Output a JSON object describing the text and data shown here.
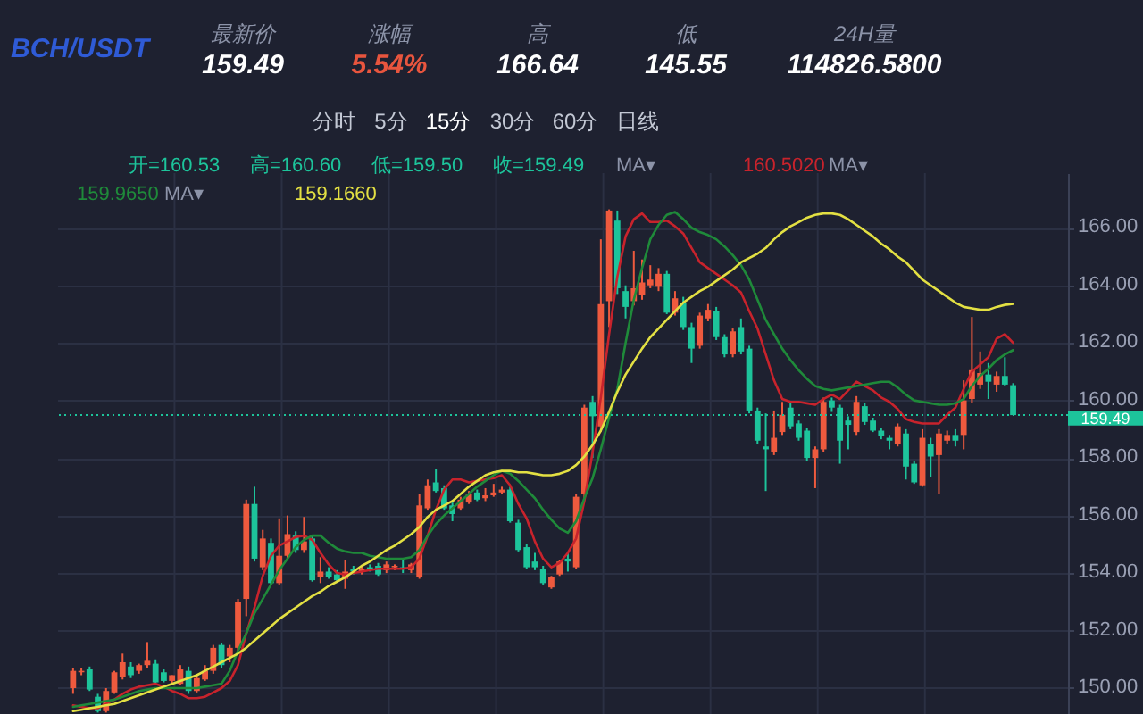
{
  "chart_data": {
    "type": "candlestick",
    "title": "BCH/USDT",
    "categories": [
      null,
      null,
      null,
      null,
      null,
      null,
      null,
      null,
      null,
      null,
      null,
      null,
      null,
      null,
      null,
      null,
      null,
      null,
      null,
      null,
      null,
      null,
      null,
      null,
      null,
      null,
      null,
      null,
      null,
      null,
      null,
      null,
      null,
      null,
      null,
      null,
      null,
      null,
      null,
      null,
      null,
      null,
      null,
      null,
      null,
      null,
      null,
      null,
      null,
      null,
      null,
      null,
      null,
      null,
      null,
      null,
      null,
      null,
      null,
      null,
      null,
      null,
      null,
      null,
      null,
      null,
      null,
      null,
      null,
      null,
      null,
      null,
      null,
      null,
      null,
      null,
      null,
      null,
      null,
      null,
      null,
      null,
      null,
      null,
      null,
      null,
      null,
      null,
      null,
      null,
      null,
      null,
      null,
      null,
      null,
      null,
      null,
      null,
      null,
      null,
      null,
      null,
      null,
      null,
      null,
      null,
      null,
      null,
      null,
      null,
      null,
      null,
      null,
      null,
      null
    ],
    "ohlc": [
      [
        150.0,
        150.7,
        149.8,
        150.6
      ],
      [
        150.55,
        150.7,
        150.45,
        150.6
      ],
      [
        150.65,
        150.75,
        149.9,
        149.95
      ],
      [
        149.7,
        149.8,
        149.15,
        149.2
      ],
      [
        149.2,
        150.0,
        149.15,
        149.9
      ],
      [
        149.85,
        150.6,
        149.8,
        150.55
      ],
      [
        150.4,
        151.2,
        150.3,
        150.9
      ],
      [
        150.75,
        150.9,
        150.35,
        150.45
      ],
      [
        150.6,
        150.85,
        150.5,
        150.8
      ],
      [
        150.8,
        151.6,
        150.7,
        150.95
      ],
      [
        150.85,
        151.0,
        150.1,
        150.2
      ],
      [
        150.55,
        150.65,
        150.2,
        150.25
      ],
      [
        150.25,
        150.45,
        150.1,
        150.45
      ],
      [
        150.15,
        150.8,
        150.1,
        150.65
      ],
      [
        150.6,
        150.75,
        149.8,
        149.9
      ],
      [
        149.9,
        150.45,
        149.85,
        150.35
      ],
      [
        150.3,
        150.8,
        150.25,
        150.6
      ],
      [
        150.6,
        151.5,
        150.5,
        151.4
      ],
      [
        151.5,
        151.55,
        150.7,
        150.8
      ],
      [
        151.1,
        151.5,
        150.9,
        151.4
      ],
      [
        151.4,
        153.1,
        151.3,
        153.0
      ],
      [
        153.1,
        156.55,
        152.5,
        156.4
      ],
      [
        156.4,
        157.0,
        154.4,
        154.5
      ],
      [
        154.2,
        155.5,
        154.1,
        155.2
      ],
      [
        155.05,
        155.2,
        153.6,
        153.65
      ],
      [
        153.65,
        155.9,
        153.6,
        154.6
      ],
      [
        154.6,
        156.0,
        154.5,
        155.35
      ],
      [
        155.3,
        155.45,
        154.7,
        154.8
      ],
      [
        154.8,
        155.95,
        154.7,
        155.1
      ],
      [
        155.2,
        155.3,
        153.7,
        153.75
      ],
      [
        153.85,
        154.55,
        153.65,
        154.05
      ],
      [
        154.05,
        154.2,
        153.8,
        153.85
      ],
      [
        153.95,
        154.1,
        153.7,
        153.75
      ],
      [
        153.8,
        154.45,
        153.45,
        154.05
      ],
      [
        154.15,
        154.25,
        153.95,
        154.05
      ],
      [
        154.05,
        154.25,
        153.95,
        154.15
      ],
      [
        154.2,
        154.3,
        154.05,
        154.1
      ],
      [
        154.25,
        154.35,
        153.9,
        153.95
      ],
      [
        154.1,
        154.4,
        154.0,
        154.3
      ],
      [
        154.2,
        154.3,
        154.1,
        154.25
      ],
      [
        154.2,
        154.5,
        154.0,
        154.15
      ],
      [
        154.1,
        154.35,
        154.0,
        154.3
      ],
      [
        153.85,
        156.75,
        153.8,
        156.35
      ],
      [
        156.25,
        157.25,
        156.2,
        157.05
      ],
      [
        157.15,
        157.6,
        156.8,
        156.85
      ],
      [
        156.95,
        157.05,
        156.2,
        156.25
      ],
      [
        156.35,
        156.45,
        155.8,
        156.05
      ],
      [
        156.25,
        156.65,
        156.2,
        156.55
      ],
      [
        156.45,
        156.85,
        156.4,
        156.75
      ],
      [
        156.8,
        156.9,
        156.5,
        156.55
      ],
      [
        156.6,
        156.95,
        156.5,
        156.7
      ],
      [
        156.7,
        157.1,
        156.65,
        156.8
      ],
      [
        156.8,
        157.0,
        156.75,
        156.9
      ],
      [
        156.9,
        157.0,
        155.75,
        155.8
      ],
      [
        155.75,
        155.85,
        154.75,
        154.8
      ],
      [
        154.9,
        155.0,
        154.15,
        154.2
      ],
      [
        154.4,
        154.7,
        154.1,
        154.2
      ],
      [
        154.15,
        154.25,
        153.6,
        153.65
      ],
      [
        153.5,
        153.9,
        153.45,
        153.85
      ],
      [
        153.95,
        154.45,
        153.9,
        154.4
      ],
      [
        154.5,
        154.7,
        154.05,
        154.4
      ],
      [
        154.2,
        156.75,
        154.15,
        156.65
      ],
      [
        156.75,
        159.85,
        156.6,
        159.75
      ],
      [
        159.95,
        160.15,
        158.0,
        159.45
      ],
      [
        159.1,
        165.6,
        158.9,
        163.35
      ],
      [
        163.45,
        166.64,
        162.55,
        166.6
      ],
      [
        166.25,
        166.6,
        163.7,
        163.9
      ],
      [
        163.8,
        164.0,
        162.85,
        163.25
      ],
      [
        163.45,
        165.2,
        163.3,
        163.9
      ],
      [
        163.65,
        164.9,
        163.5,
        164.1
      ],
      [
        164.0,
        164.7,
        163.9,
        164.2
      ],
      [
        163.95,
        164.6,
        163.8,
        164.4
      ],
      [
        164.4,
        164.5,
        163.0,
        163.05
      ],
      [
        163.05,
        163.8,
        162.95,
        163.55
      ],
      [
        163.4,
        163.6,
        162.45,
        162.55
      ],
      [
        162.55,
        162.7,
        161.3,
        161.8
      ],
      [
        161.9,
        163.05,
        161.8,
        162.95
      ],
      [
        162.85,
        163.35,
        162.75,
        163.15
      ],
      [
        163.1,
        163.25,
        162.1,
        162.2
      ],
      [
        162.2,
        162.3,
        161.5,
        161.6
      ],
      [
        161.6,
        162.5,
        161.5,
        162.4
      ],
      [
        162.55,
        162.85,
        161.6,
        161.7
      ],
      [
        161.8,
        161.9,
        159.55,
        159.65
      ],
      [
        159.65,
        159.75,
        158.5,
        158.6
      ],
      [
        158.4,
        159.55,
        156.85,
        158.3
      ],
      [
        158.2,
        159.65,
        158.1,
        158.7
      ],
      [
        158.9,
        159.95,
        158.8,
        159.5
      ],
      [
        159.75,
        159.9,
        159.0,
        159.1
      ],
      [
        159.2,
        159.3,
        158.6,
        158.7
      ],
      [
        158.95,
        159.05,
        157.9,
        158.0
      ],
      [
        158.0,
        158.4,
        156.95,
        158.3
      ],
      [
        158.3,
        160.1,
        158.2,
        159.95
      ],
      [
        160.0,
        160.1,
        159.6,
        159.75
      ],
      [
        159.75,
        159.85,
        157.8,
        158.6
      ],
      [
        159.3,
        159.45,
        158.3,
        159.15
      ],
      [
        158.9,
        160.15,
        158.8,
        159.95
      ],
      [
        159.8,
        159.9,
        159.15,
        159.25
      ],
      [
        159.3,
        159.4,
        158.9,
        158.95
      ],
      [
        158.95,
        159.05,
        158.65,
        158.75
      ],
      [
        158.7,
        158.8,
        158.3,
        158.6
      ],
      [
        158.5,
        159.2,
        158.4,
        159.1
      ],
      [
        158.85,
        159.0,
        157.25,
        157.7
      ],
      [
        157.8,
        157.9,
        157.1,
        157.15
      ],
      [
        157.05,
        159.0,
        157.0,
        158.7
      ],
      [
        158.5,
        158.7,
        157.35,
        158.05
      ],
      [
        158.1,
        159.0,
        156.75,
        158.85
      ],
      [
        158.6,
        158.95,
        158.5,
        158.8
      ],
      [
        158.8,
        159.0,
        158.4,
        158.6
      ],
      [
        158.8,
        160.7,
        158.3,
        160.0
      ],
      [
        160.05,
        162.9,
        159.9,
        161.05
      ],
      [
        160.55,
        161.7,
        160.4,
        160.95
      ],
      [
        160.9,
        161.3,
        160.05,
        160.65
      ],
      [
        160.55,
        161.0,
        160.3,
        160.85
      ],
      [
        160.85,
        161.5,
        160.5,
        160.55
      ],
      [
        160.53,
        160.6,
        159.49,
        159.49
      ]
    ],
    "colors": [
      "#ee5a3e",
      "#ee5a3e",
      "#1dc49b",
      "#1dc49b",
      "#ee5a3e",
      "#ee5a3e",
      "#ee5a3e",
      "#1dc49b",
      "#ee5a3e",
      "#ee5a3e",
      "#1dc49b",
      "#1dc49b",
      "#ee5a3e",
      "#ee5a3e",
      "#1dc49b",
      "#ee5a3e",
      "#ee5a3e",
      "#ee5a3e",
      "#1dc49b",
      "#ee5a3e",
      "#ee5a3e",
      "#ee5a3e",
      "#1dc49b",
      "#ee5a3e",
      "#1dc49b",
      "#ee5a3e",
      "#ee5a3e",
      "#1dc49b",
      "#ee5a3e",
      "#1dc49b",
      "#ee5a3e",
      "#1dc49b",
      "#1dc49b",
      "#ee5a3e",
      "#1dc49b",
      "#ee5a3e",
      "#1dc49b",
      "#1dc49b",
      "#ee5a3e",
      "#ee5a3e",
      "#1dc49b",
      "#ee5a3e",
      "#ee5a3e",
      "#ee5a3e",
      "#1dc49b",
      "#1dc49b",
      "#1dc49b",
      "#ee5a3e",
      "#ee5a3e",
      "#1dc49b",
      "#ee5a3e",
      "#ee5a3e",
      "#ee5a3e",
      "#1dc49b",
      "#1dc49b",
      "#1dc49b",
      "#1dc49b",
      "#1dc49b",
      "#ee5a3e",
      "#ee5a3e",
      "#1dc49b",
      "#ee5a3e",
      "#ee5a3e",
      "#1dc49b",
      "#ee5a3e",
      "#ee5a3e",
      "#1dc49b",
      "#1dc49b",
      "#ee5a3e",
      "#ee5a3e",
      "#ee5a3e",
      "#ee5a3e",
      "#1dc49b",
      "#ee5a3e",
      "#1dc49b",
      "#1dc49b",
      "#ee5a3e",
      "#ee5a3e",
      "#1dc49b",
      "#1dc49b",
      "#ee5a3e",
      "#1dc49b",
      "#1dc49b",
      "#1dc49b",
      "#1dc49b",
      "#ee5a3e",
      "#ee5a3e",
      "#1dc49b",
      "#1dc49b",
      "#1dc49b",
      "#ee5a3e",
      "#ee5a3e",
      "#1dc49b",
      "#1dc49b",
      "#1dc49b",
      "#ee5a3e",
      "#1dc49b",
      "#1dc49b",
      "#1dc49b",
      "#1dc49b",
      "#ee5a3e",
      "#1dc49b",
      "#1dc49b",
      "#ee5a3e",
      "#1dc49b",
      "#ee5a3e",
      "#ee5a3e",
      "#1dc49b",
      "#ee5a3e",
      "#ee5a3e",
      "#ee5a3e",
      "#1dc49b",
      "#ee5a3e",
      "#1dc49b",
      "#1dc49b"
    ],
    "series": [
      {
        "type": "line",
        "color": "#c8232c",
        "values": [
          149.4,
          149.35,
          149.3,
          149.3,
          149.45,
          149.6,
          149.8,
          149.95,
          150.05,
          150.1,
          150.15,
          150.05,
          149.9,
          149.8,
          149.65,
          149.65,
          149.7,
          149.85,
          150.0,
          150.25,
          150.8,
          151.9,
          152.8,
          153.9,
          154.6,
          154.95,
          155.1,
          155.25,
          155.3,
          155.15,
          154.7,
          154.3,
          154.0,
          153.95,
          154.0,
          154.05,
          154.1,
          154.15,
          154.15,
          154.15,
          154.15,
          154.2,
          154.5,
          155.3,
          156.2,
          156.9,
          157.25,
          157.25,
          157.15,
          157.2,
          157.25,
          157.3,
          157.4,
          157.05,
          156.4,
          155.9,
          155.1,
          154.5,
          154.2,
          154.35,
          154.7,
          155.2,
          156.5,
          158.2,
          160.1,
          162.3,
          164.3,
          165.7,
          166.3,
          166.5,
          166.2,
          166.2,
          166.25,
          166.05,
          165.8,
          165.3,
          164.8,
          164.6,
          164.4,
          164.2,
          164.0,
          163.75,
          163.1,
          162.5,
          161.6,
          160.7,
          160.05,
          159.95,
          159.95,
          159.9,
          159.85,
          160.05,
          160.2,
          160.05,
          160.35,
          160.65,
          160.5,
          160.35,
          160.1,
          159.95,
          159.7,
          159.35,
          159.25,
          159.2,
          159.2,
          159.2,
          159.5,
          159.75,
          160.4,
          161.0,
          161.25,
          161.5,
          162.15,
          162.3,
          162.0
        ]
      },
      {
        "type": "line",
        "color": "#1f8a3a",
        "values": [
          149.35,
          149.4,
          149.45,
          149.5,
          149.55,
          149.6,
          149.7,
          149.8,
          149.9,
          149.95,
          150.0,
          150.0,
          150.0,
          150.0,
          150.0,
          150.0,
          150.05,
          150.1,
          150.15,
          150.6,
          151.3,
          151.9,
          152.6,
          153.1,
          153.6,
          154.1,
          154.5,
          154.9,
          155.15,
          155.3,
          155.3,
          155.05,
          154.85,
          154.75,
          154.7,
          154.7,
          154.6,
          154.55,
          154.5,
          154.5,
          154.5,
          154.55,
          154.8,
          155.3,
          155.7,
          156.0,
          156.25,
          156.5,
          156.75,
          157.0,
          157.2,
          157.4,
          157.55,
          157.45,
          157.2,
          156.9,
          156.6,
          156.2,
          155.85,
          155.55,
          155.4,
          155.8,
          156.6,
          157.3,
          158.3,
          159.4,
          160.4,
          162.0,
          163.5,
          164.6,
          165.6,
          166.1,
          166.45,
          166.55,
          166.3,
          166.0,
          165.85,
          165.75,
          165.6,
          165.35,
          165.05,
          164.7,
          164.2,
          163.5,
          162.8,
          162.3,
          161.8,
          161.4,
          161.05,
          160.75,
          160.5,
          160.4,
          160.35,
          160.4,
          160.45,
          160.5,
          160.55,
          160.6,
          160.65,
          160.65,
          160.45,
          160.2,
          160.0,
          159.95,
          159.9,
          159.85,
          159.85,
          159.9,
          160.05,
          160.5,
          160.85,
          161.1,
          161.4,
          161.6,
          161.75
        ]
      },
      {
        "type": "line",
        "color": "#e3e043",
        "values": [
          149.2,
          149.25,
          149.3,
          149.35,
          149.4,
          149.45,
          149.55,
          149.65,
          149.75,
          149.85,
          149.95,
          150.05,
          150.15,
          150.25,
          150.35,
          150.45,
          150.6,
          150.75,
          150.9,
          151.05,
          151.2,
          151.4,
          151.65,
          151.9,
          152.15,
          152.4,
          152.6,
          152.8,
          153.0,
          153.2,
          153.35,
          153.55,
          153.7,
          153.85,
          154.05,
          154.25,
          154.4,
          154.6,
          154.8,
          154.95,
          155.15,
          155.35,
          155.6,
          155.95,
          156.2,
          156.35,
          156.5,
          156.75,
          157.0,
          157.2,
          157.4,
          157.5,
          157.55,
          157.55,
          157.5,
          157.5,
          157.45,
          157.4,
          157.4,
          157.45,
          157.55,
          157.75,
          158.05,
          158.45,
          158.95,
          159.6,
          160.3,
          160.9,
          161.35,
          161.8,
          162.2,
          162.5,
          162.8,
          163.1,
          163.4,
          163.6,
          163.8,
          163.95,
          164.15,
          164.35,
          164.55,
          164.8,
          164.95,
          165.1,
          165.3,
          165.6,
          165.85,
          166.05,
          166.2,
          166.35,
          166.45,
          166.5,
          166.5,
          166.45,
          166.3,
          166.1,
          165.9,
          165.7,
          165.45,
          165.25,
          165.0,
          164.8,
          164.5,
          164.2,
          164.0,
          163.8,
          163.6,
          163.4,
          163.25,
          163.2,
          163.15,
          163.15,
          163.25,
          163.32,
          163.36
        ]
      }
    ],
    "ylim": [
      149.1,
      167.9
    ],
    "yticks": [
      {
        "value": 150,
        "label": "150.00"
      },
      {
        "value": 152,
        "label": "152.00"
      },
      {
        "value": 154,
        "label": "154.00"
      },
      {
        "value": 156,
        "label": "156.00"
      },
      {
        "value": 158,
        "label": "158.00"
      },
      {
        "value": 160,
        "label": "160.00"
      },
      {
        "value": 162,
        "label": "162.00"
      },
      {
        "value": 164,
        "label": "164.00"
      },
      {
        "value": 166,
        "label": "166.00"
      }
    ],
    "ref_lines": [
      {
        "axis": "y",
        "value": 159.49,
        "label": "159.49",
        "color": "#1dc49b",
        "line_style": "dotted"
      }
    ],
    "annotations": [
      "最新价",
      "159.49",
      "涨幅",
      "5.54%",
      "高",
      "166.64",
      "低",
      "145.55",
      "24H量",
      "114826.5800",
      "分时",
      "5分",
      "15分",
      "30分",
      "60分",
      "日线",
      "开=160.53",
      "高=160.60",
      "低=159.50",
      "收=159.49",
      "MA▾",
      "160.5020",
      "MA▾",
      "159.9650",
      "MA▾",
      "159.1660"
    ],
    "grid": true,
    "tick_labels": "y"
  }
}
